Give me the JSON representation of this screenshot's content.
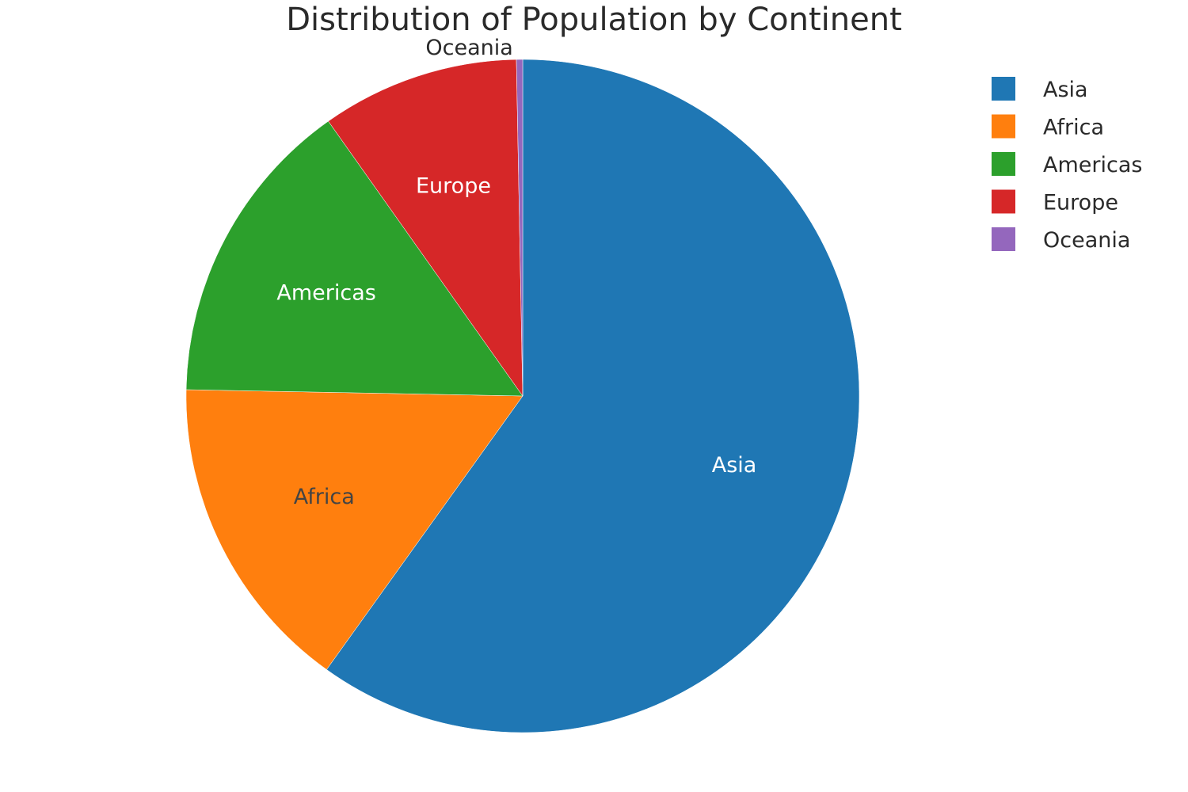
{
  "chart_data": {
    "type": "pie",
    "title": "Distribution of Population by Continent",
    "categories": [
      "Asia",
      "Africa",
      "Americas",
      "Europe",
      "Oceania"
    ],
    "values": [
      59.9,
      15.4,
      14.9,
      9.5,
      0.3
    ],
    "colors": [
      "#1f77b4",
      "#ff7f0e",
      "#2ca02c",
      "#d62728",
      "#9467bd"
    ],
    "label_colors": [
      "#ffffff",
      "#444444",
      "#ffffff",
      "#ffffff",
      "#2a2a2a"
    ],
    "start": "12 o'clock",
    "direction": "clockwise",
    "legend": "top-right"
  }
}
